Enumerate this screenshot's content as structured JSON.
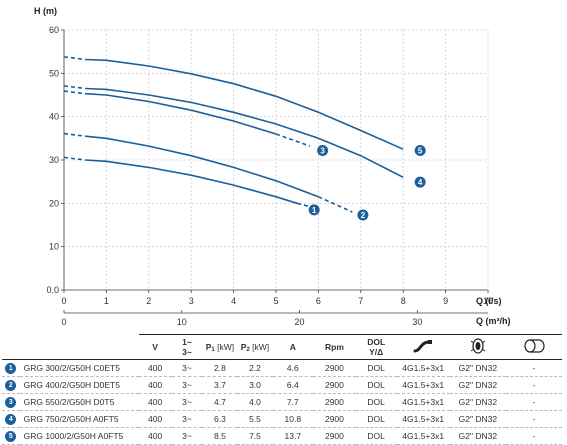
{
  "chart_data": {
    "type": "line",
    "ylabel": "H (m)",
    "xlabel": "Q (l/s)",
    "x2label": "Q (m³/h)",
    "xlim": [
      0,
      10
    ],
    "ylim": [
      0,
      60
    ],
    "x_ticks": [
      "0",
      "1",
      "2",
      "3",
      "4",
      "5",
      "6",
      "7",
      "8",
      "9",
      "10"
    ],
    "x2_ticks": [
      "0",
      "10",
      "20",
      "30"
    ],
    "y_ticks": [
      "0.0",
      "10",
      "20",
      "30",
      "40",
      "50",
      "60"
    ],
    "grid": true,
    "color": "#1b5f9b",
    "series": [
      {
        "name": "1",
        "points": [
          [
            0.5,
            30
          ],
          [
            1,
            29.7
          ],
          [
            2,
            28.3
          ],
          [
            3,
            26.5
          ],
          [
            4,
            24.2
          ],
          [
            5,
            21.5
          ],
          [
            5.5,
            20
          ]
        ],
        "dash": [
          [
            5.5,
            20
          ],
          [
            5.9,
            19
          ]
        ],
        "label_at": [
          5.9,
          18.5
        ]
      },
      {
        "name": "2",
        "points": [
          [
            0.5,
            35.5
          ],
          [
            1,
            35
          ],
          [
            2,
            33.2
          ],
          [
            3,
            31
          ],
          [
            4,
            28.3
          ],
          [
            5,
            25.2
          ],
          [
            6,
            21.5
          ]
        ],
        "dash": [
          [
            6,
            21.5
          ],
          [
            6.8,
            18
          ]
        ],
        "label_at": [
          7.05,
          17.3
        ]
      },
      {
        "name": "3",
        "points": [
          [
            0.5,
            45.3
          ],
          [
            1,
            45
          ],
          [
            2,
            43.5
          ],
          [
            3,
            41.5
          ],
          [
            4,
            39
          ],
          [
            5,
            36
          ]
        ],
        "dash": [
          [
            5,
            36
          ],
          [
            5.8,
            33.2
          ]
        ],
        "label_at": [
          6.1,
          32.2
        ]
      },
      {
        "name": "4",
        "points": [
          [
            0.5,
            46.5
          ],
          [
            1,
            46.3
          ],
          [
            2,
            45
          ],
          [
            3,
            43.3
          ],
          [
            4,
            41
          ],
          [
            5,
            38.3
          ],
          [
            6,
            35
          ],
          [
            7,
            31
          ],
          [
            7.5,
            28.5
          ],
          [
            8,
            26
          ]
        ],
        "label_at": [
          8.4,
          24.9
        ]
      },
      {
        "name": "5",
        "points": [
          [
            0.5,
            53.2
          ],
          [
            1,
            53
          ],
          [
            2,
            51.7
          ],
          [
            3,
            49.9
          ],
          [
            4,
            47.6
          ],
          [
            5,
            44.7
          ],
          [
            6,
            41
          ],
          [
            7,
            36.8
          ],
          [
            8,
            32.5
          ]
        ],
        "label_at": [
          8.4,
          32.2
        ]
      }
    ]
  },
  "table": {
    "headers": {
      "v": "V",
      "phase_top": "1~",
      "phase_bottom": "3~",
      "p1": "P",
      "p1_sub": "1",
      "p1_unit": " [kW]",
      "p2": "P",
      "p2_sub": "2",
      "p2_unit": " [kW]",
      "a": "A",
      "rpm": "Rpm",
      "dol": "DOL",
      "dol2": "Y/Δ"
    },
    "rows": [
      {
        "num": "1",
        "model": "GRG 300/2/G50H C0ET5",
        "v": "400",
        "phase": "3~",
        "p1": "2.8",
        "p2": "2.2",
        "a": "4.6",
        "rpm": "2900",
        "start": "DOL",
        "cable": "4G1.5+3x1",
        "outlet": "G2\" DN32",
        "extra": "-"
      },
      {
        "num": "2",
        "model": "GRG 400/2/G50H D0ET5",
        "v": "400",
        "phase": "3~",
        "p1": "3.7",
        "p2": "3.0",
        "a": "6.4",
        "rpm": "2900",
        "start": "DOL",
        "cable": "4G1.5+3x1",
        "outlet": "G2\" DN32",
        "extra": "-"
      },
      {
        "num": "3",
        "model": "GRG 550/2/G50H D0T5",
        "v": "400",
        "phase": "3~",
        "p1": "4.7",
        "p2": "4.0",
        "a": "7.7",
        "rpm": "2900",
        "start": "DOL",
        "cable": "4G1.5+3x1",
        "outlet": "G2\" DN32",
        "extra": "-"
      },
      {
        "num": "4",
        "model": "GRG 750/2/G50H A0FT5",
        "v": "400",
        "phase": "3~",
        "p1": "6.3",
        "p2": "5.5",
        "a": "10.8",
        "rpm": "2900",
        "start": "DOL",
        "cable": "4G1.5+3x1",
        "outlet": "G2\" DN32",
        "extra": "-"
      },
      {
        "num": "5",
        "model": "GRG 1000/2/G50H A0FT5",
        "v": "400",
        "phase": "3~",
        "p1": "8.5",
        "p2": "7.5",
        "a": "13.7",
        "rpm": "2900",
        "start": "DOL",
        "cable": "4G1.5+3x1",
        "outlet": "G2\" DN32",
        "extra": "-"
      }
    ]
  }
}
